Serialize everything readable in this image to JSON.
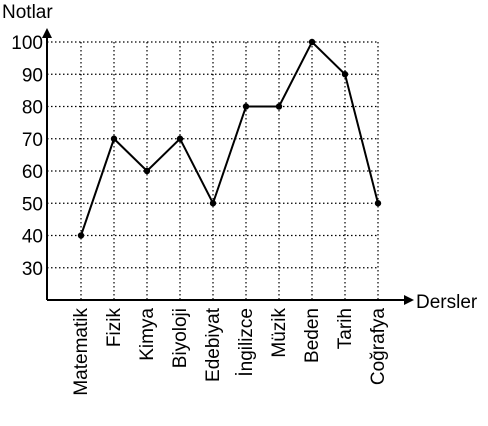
{
  "chart_data": {
    "type": "line",
    "xlabel": "Dersler",
    "ylabel": "Notlar",
    "categories": [
      "Matematik",
      "Fizik",
      "Kimya",
      "Biyoloji",
      "Edebiyat",
      "İngilizce",
      "Müzik",
      "Beden",
      "Tarih",
      "Coğrafya"
    ],
    "values": [
      40,
      70,
      60,
      70,
      50,
      80,
      80,
      100,
      90,
      50
    ],
    "yticks": [
      30,
      40,
      50,
      60,
      70,
      80,
      90,
      100
    ],
    "ylim": [
      20,
      100
    ],
    "grid": true,
    "grid_style": "dotted",
    "line_color": "#000000",
    "marker": "dot"
  }
}
